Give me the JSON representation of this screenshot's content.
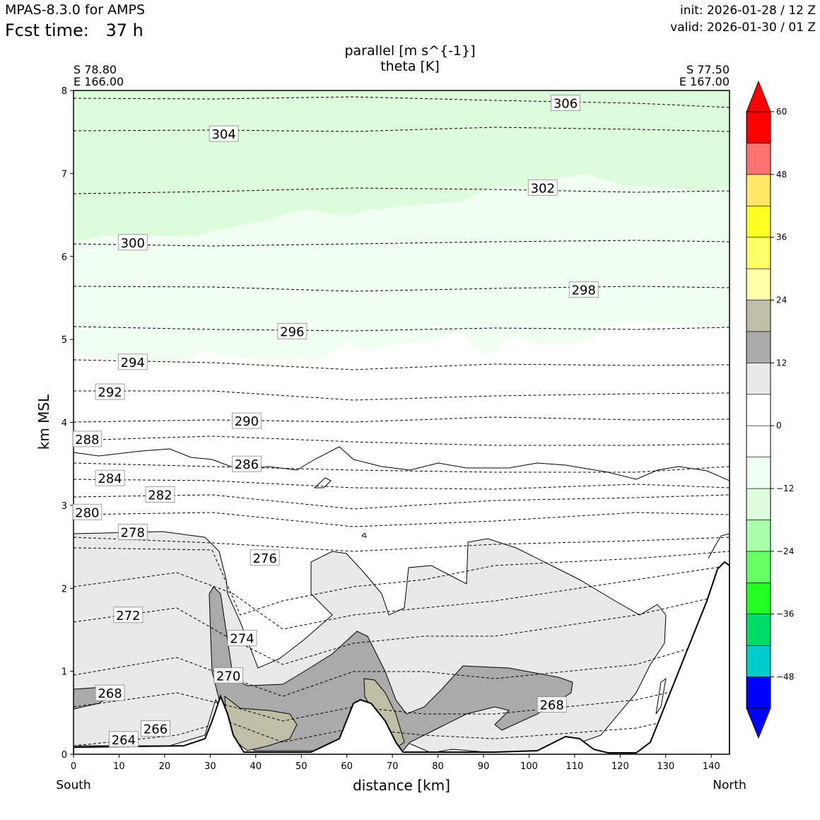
{
  "header": {
    "model": "MPAS-8.3.0 for AMPS",
    "fcst_label": "Fcst time:",
    "fcst_value": "37 h",
    "init": "init: 2026-01-28 / 12 Z",
    "valid": "valid: 2026-01-30 / 01 Z"
  },
  "titles": {
    "line1": "parallel [m s^{-1}]",
    "line2": "theta [K]"
  },
  "endpoints": {
    "left_lat": "S 78.80",
    "left_lon": "E 166.00",
    "right_lat": "S 77.50",
    "right_lon": "E 167.00"
  },
  "direction": {
    "left": "South",
    "right": "North"
  },
  "chart_data": {
    "type": "contour-cross-section",
    "xlabel": "distance [km]",
    "ylabel": "km MSL",
    "xlim": [
      0,
      144
    ],
    "ylim": [
      0,
      8
    ],
    "xticks": [
      0,
      10,
      20,
      30,
      40,
      50,
      60,
      70,
      80,
      90,
      100,
      110,
      120,
      130,
      140
    ],
    "yticks": [
      0,
      1,
      2,
      3,
      4,
      5,
      6,
      7,
      8
    ],
    "colorbar": {
      "levels": [
        -54,
        -48,
        -42,
        -36,
        -30,
        -24,
        -18,
        -12,
        -6,
        0,
        6,
        12,
        18,
        24,
        30,
        36,
        42,
        48,
        54,
        60
      ],
      "tick_labels": [
        "60",
        "48",
        "36",
        "24",
        "12",
        "0",
        "−12",
        "−24",
        "−36",
        "−48"
      ],
      "colors": [
        "#0000ff",
        "#00cccc",
        "#00dd66",
        "#22ff22",
        "#66ff66",
        "#aaffaa",
        "#dcfcdc",
        "#f0fff0",
        "#ffffff",
        "#ffffff",
        "#e9e9e9",
        "#aaaaaa",
        "#bfbfa8",
        "#ffffaa",
        "#ffff66",
        "#ffff22",
        "#ffe866",
        "#ff7070",
        "#ff0000"
      ]
    },
    "theta_labels": [
      {
        "text": "306",
        "x": 108,
        "y": 7.85
      },
      {
        "text": "304",
        "x": 33,
        "y": 7.48
      },
      {
        "text": "302",
        "x": 103,
        "y": 6.83
      },
      {
        "text": "300",
        "x": 13,
        "y": 6.17
      },
      {
        "text": "298",
        "x": 112,
        "y": 5.6
      },
      {
        "text": "296",
        "x": 48,
        "y": 5.1
      },
      {
        "text": "294",
        "x": 13,
        "y": 4.73
      },
      {
        "text": "292",
        "x": 8,
        "y": 4.37
      },
      {
        "text": "290",
        "x": 38,
        "y": 4.02
      },
      {
        "text": "288",
        "x": 3,
        "y": 3.8
      },
      {
        "text": "286",
        "x": 38,
        "y": 3.5
      },
      {
        "text": "284",
        "x": 8,
        "y": 3.33
      },
      {
        "text": "282",
        "x": 19,
        "y": 3.13
      },
      {
        "text": "280",
        "x": 3,
        "y": 2.92
      },
      {
        "text": "278",
        "x": 13,
        "y": 2.68
      },
      {
        "text": "276",
        "x": 42,
        "y": 2.37
      },
      {
        "text": "274",
        "x": 37,
        "y": 1.4
      },
      {
        "text": "272",
        "x": 12,
        "y": 1.68
      },
      {
        "text": "270",
        "x": 34,
        "y": 0.95
      },
      {
        "text": "268",
        "x": 8,
        "y": 0.74
      },
      {
        "text": "268",
        "x": 105,
        "y": 0.6
      },
      {
        "text": "266",
        "x": 18,
        "y": 0.31
      },
      {
        "text": "264",
        "x": 11,
        "y": 0.18
      }
    ],
    "wind_regions": [
      {
        "range": "-18 to -12",
        "fill": "#dcfcdc"
      },
      {
        "range": "-12 to -6",
        "fill": "#f0fff0"
      },
      {
        "range": "6 to 12",
        "fill": "#e9e9e9"
      },
      {
        "range": "12 to 18",
        "fill": "#aaaaaa"
      },
      {
        "range": "18 to 24",
        "fill": "#bfbfa8"
      }
    ]
  }
}
